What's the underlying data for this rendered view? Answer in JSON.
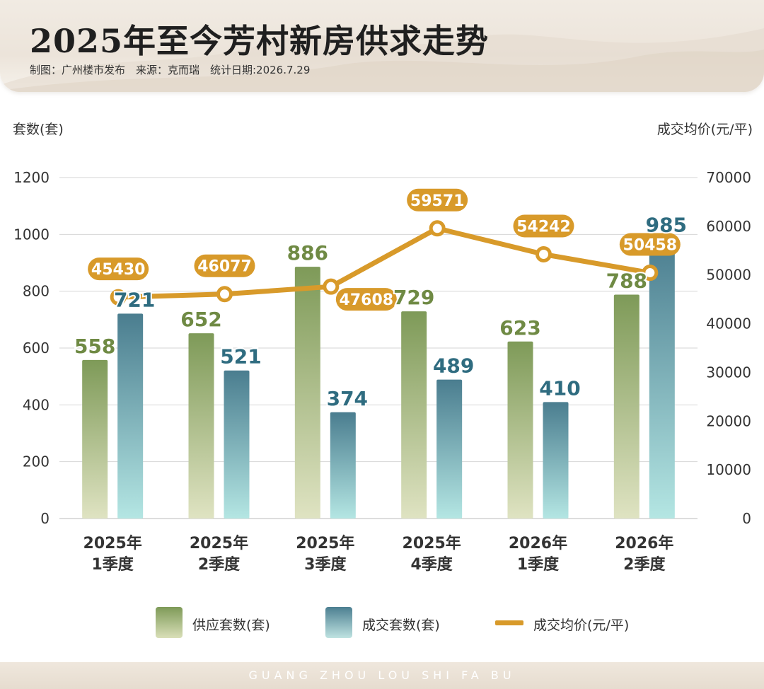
{
  "header": {
    "title": "2025年至今芳村新房供求走势",
    "subtitle": "制图：广州楼市发布　来源：克而瑞　统计日期:2026.7.29"
  },
  "chart_data": {
    "type": "bar",
    "categories": [
      [
        "2025年",
        "1季度"
      ],
      [
        "2025年",
        "2季度"
      ],
      [
        "2025年",
        "3季度"
      ],
      [
        "2025年",
        "4季度"
      ],
      [
        "2026年",
        "1季度"
      ],
      [
        "2026年",
        "2季度"
      ]
    ],
    "series": [
      {
        "name": "供应套数(套)",
        "type": "bar",
        "axis": "left",
        "values": [
          558,
          652,
          886,
          729,
          623,
          788
        ]
      },
      {
        "name": "成交套数(套)",
        "type": "bar",
        "axis": "left",
        "values": [
          721,
          521,
          374,
          489,
          410,
          985
        ]
      },
      {
        "name": "成交均价(元/平)",
        "type": "line",
        "axis": "right",
        "values": [
          45430,
          46077,
          47608,
          59571,
          54242,
          50458
        ]
      }
    ],
    "ylabel_left": "套数(套)",
    "ylabel_right": "成交均价(元/平)",
    "ylim_left": [
      0,
      1200
    ],
    "yticks_left": [
      0,
      200,
      400,
      600,
      800,
      1000,
      1200
    ],
    "ylim_right": [
      0,
      70000
    ],
    "yticks_right": [
      0,
      10000,
      20000,
      30000,
      40000,
      50000,
      60000,
      70000
    ],
    "grid": true,
    "legend": "bottom",
    "colors": {
      "supply": "#7e9a58",
      "deal": "#4c7f91",
      "price": "#d89a2a",
      "supply_label": "#6f8a44",
      "deal_label": "#2f6c80"
    }
  },
  "footer": {
    "text": "GUANG ZHOU LOU SHI FA BU"
  }
}
